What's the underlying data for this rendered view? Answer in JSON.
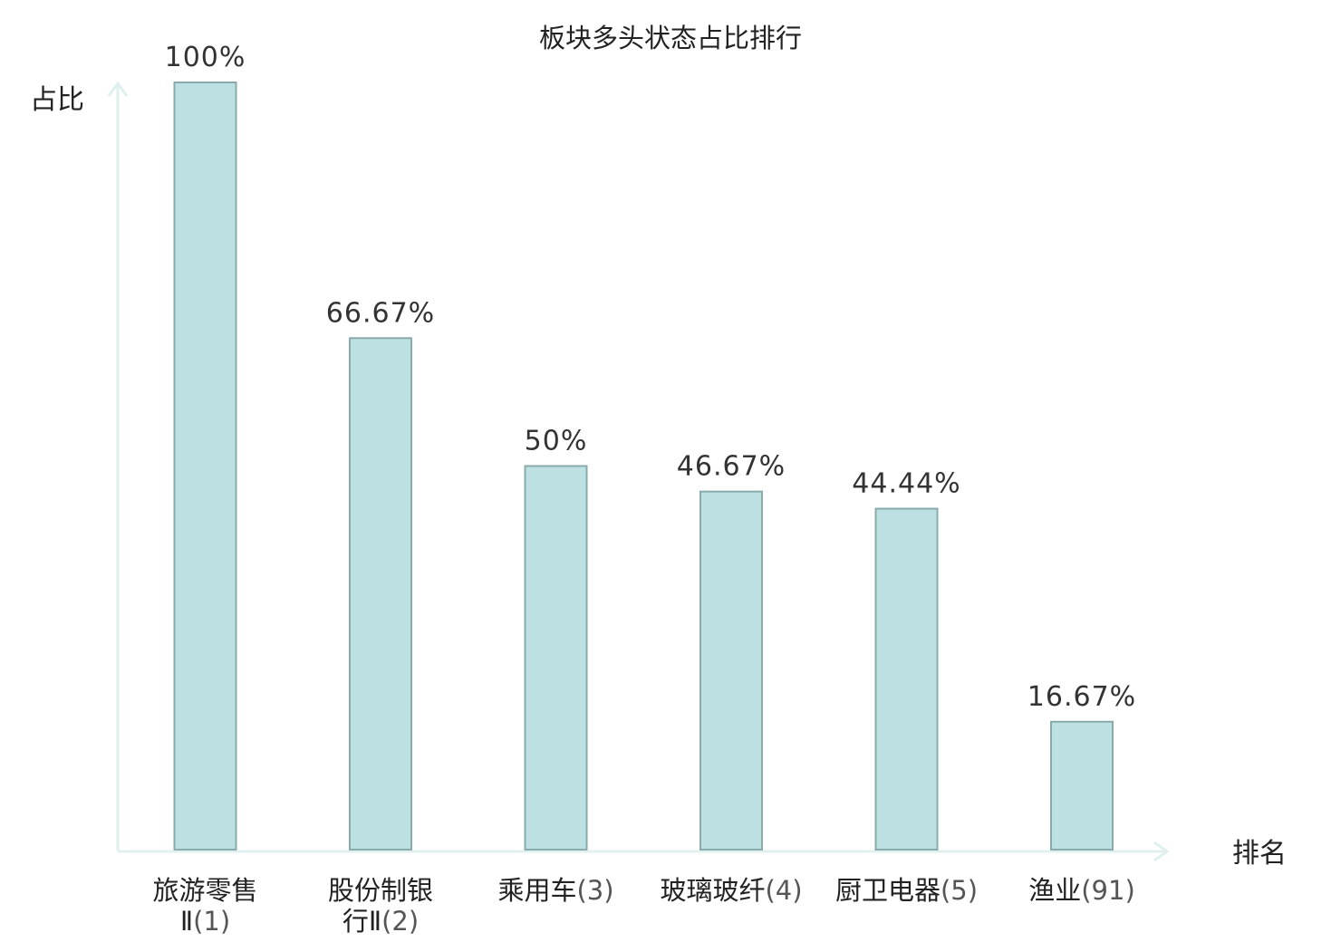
{
  "chart_data": {
    "type": "bar",
    "title": "板块多头状态占比排行",
    "xlabel": "排名",
    "ylabel": "占比",
    "ylim": [
      0,
      100
    ],
    "grid": false,
    "legend": "none",
    "categories": [
      {
        "name_lines": [
          "旅游零售",
          "Ⅱ"
        ],
        "rank": "(1)",
        "highlight": false
      },
      {
        "name_lines": [
          "股份制银",
          "行Ⅱ"
        ],
        "rank": "(2)",
        "highlight": false
      },
      {
        "name_lines": [
          "乘用车"
        ],
        "rank": "(3)",
        "highlight": false
      },
      {
        "name_lines": [
          "玻璃玻纤"
        ],
        "rank": "(4)",
        "highlight": false
      },
      {
        "name_lines": [
          "厨卫电器"
        ],
        "rank": "(5)",
        "highlight": false
      },
      {
        "name_lines": [
          "渔业"
        ],
        "rank": "(91)",
        "highlight": true
      }
    ],
    "values": [
      100,
      66.67,
      50,
      46.67,
      44.44,
      16.67
    ],
    "value_labels": [
      "100%",
      "66.67%",
      "50%",
      "46.67%",
      "44.44%",
      "16.67%"
    ]
  },
  "colors": {
    "bar_fill": "#bde0e3",
    "bar_stroke": "#8aabab",
    "axis": "#dff0ee",
    "highlight": "#e0141e",
    "text": "#222222"
  }
}
